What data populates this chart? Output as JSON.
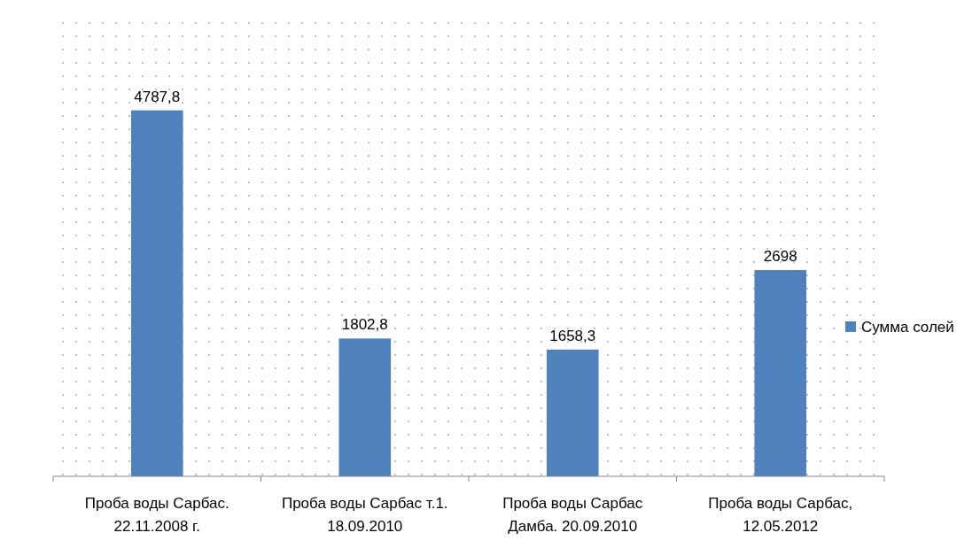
{
  "chart_data": {
    "type": "bar",
    "categories": [
      "Проба воды Сарбас. 22.11.2008 г.",
      "Проба воды Сарбас т.1. 18.09.2010",
      "Проба воды Сарбас Дамба. 20.09.2010",
      "Проба воды Сарбас, 12.05.2012"
    ],
    "series": [
      {
        "name": "Сумма солей",
        "color": "#4f81bd",
        "values": [
          4787.8,
          1802.8,
          1658.3,
          2698
        ],
        "value_labels": [
          "4787,8",
          "1802,8",
          "1658,3",
          "2698"
        ]
      }
    ],
    "ylim": [
      0,
      6000
    ],
    "legend": "right",
    "grid": false
  }
}
